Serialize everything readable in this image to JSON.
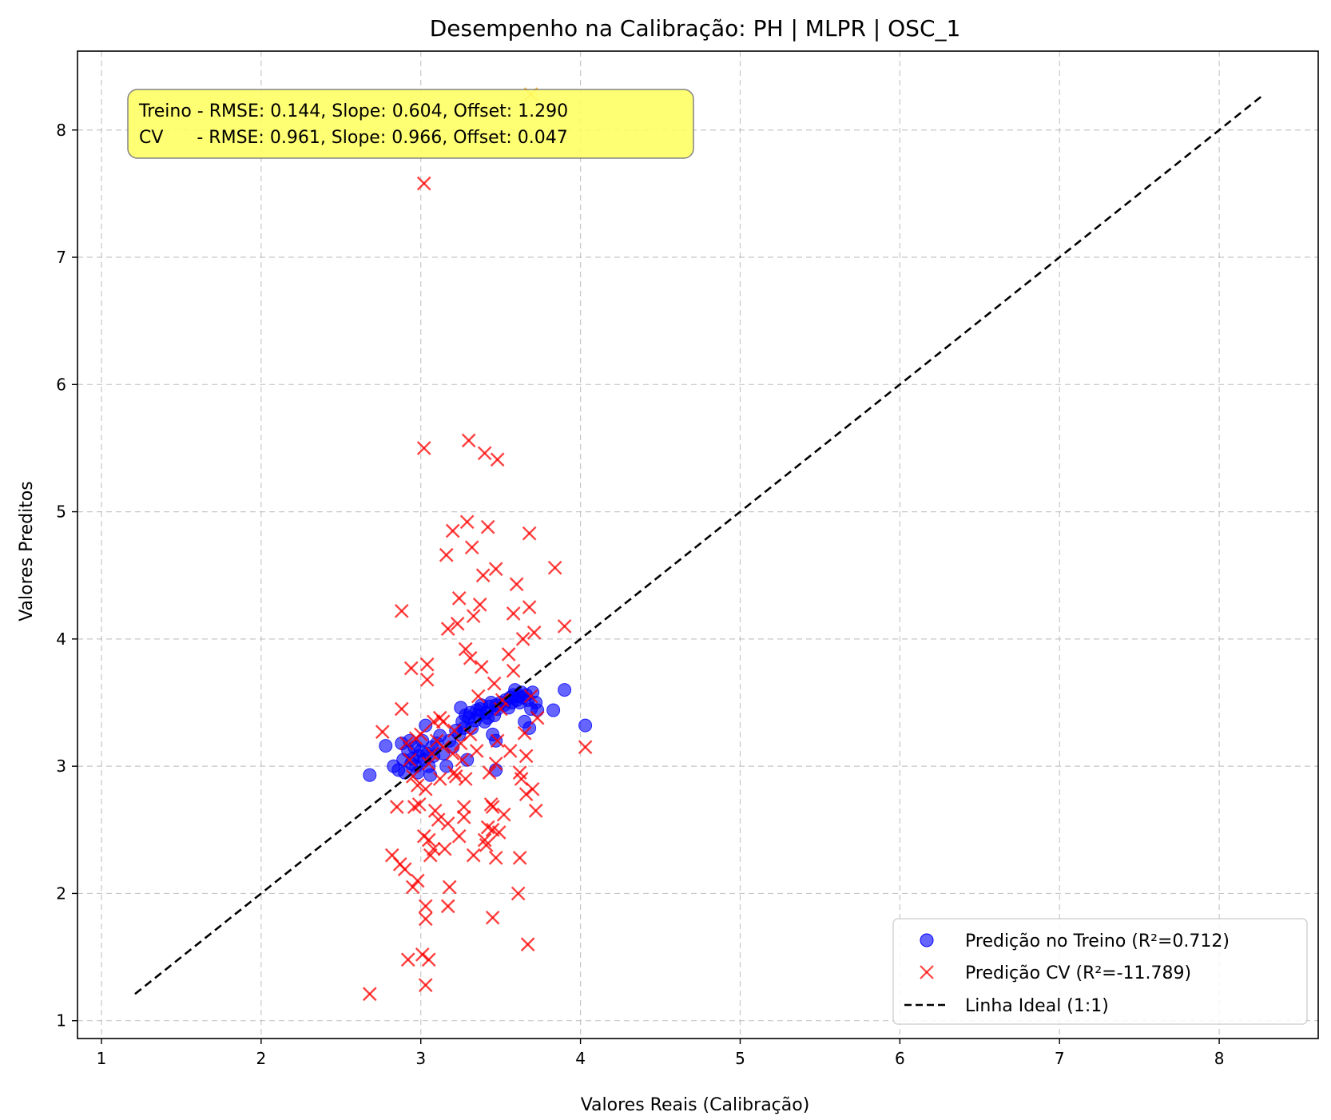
{
  "chart_data": {
    "type": "scatter",
    "title": "Desempenho na Calibração: PH | MLPR | OSC_1",
    "xlabel": "Valores Reais (Calibração)",
    "ylabel": "Valores Preditos",
    "xlim": [
      0.85,
      8.62
    ],
    "ylim": [
      0.86,
      8.62
    ],
    "xticks": [
      1,
      2,
      3,
      4,
      5,
      6,
      7,
      8
    ],
    "yticks": [
      1,
      2,
      3,
      4,
      5,
      6,
      7,
      8
    ],
    "grid": true,
    "legend_position": "lower-right",
    "annotation": {
      "line1": "Treino - RMSE: 0.144, Slope: 0.604, Offset: 1.290",
      "line2": "CV      - RMSE: 0.961, Slope: 0.966, Offset: 0.047",
      "background": "#ffff66"
    },
    "series": [
      {
        "name": "Predição no Treino (R²=0.712)",
        "marker": "circle",
        "color": "#0000ff",
        "points": [
          [
            2.68,
            2.93
          ],
          [
            2.78,
            3.16
          ],
          [
            2.83,
            3.0
          ],
          [
            2.86,
            2.97
          ],
          [
            2.88,
            3.18
          ],
          [
            2.89,
            3.05
          ],
          [
            2.9,
            2.95
          ],
          [
            2.92,
            3.12
          ],
          [
            2.93,
            3.2
          ],
          [
            2.94,
            3.02
          ],
          [
            2.95,
            3.06
          ],
          [
            2.96,
            3.15
          ],
          [
            2.97,
            3.0
          ],
          [
            2.98,
            2.95
          ],
          [
            2.99,
            3.08
          ],
          [
            3.0,
            3.12
          ],
          [
            3.01,
            3.2
          ],
          [
            3.02,
            3.05
          ],
          [
            3.03,
            3.32
          ],
          [
            3.04,
            3.1
          ],
          [
            3.05,
            3.0
          ],
          [
            3.06,
            2.93
          ],
          [
            3.07,
            3.15
          ],
          [
            3.08,
            3.08
          ],
          [
            3.1,
            3.18
          ],
          [
            3.12,
            3.24
          ],
          [
            3.14,
            3.1
          ],
          [
            3.16,
            3.0
          ],
          [
            3.18,
            3.2
          ],
          [
            3.2,
            3.15
          ],
          [
            3.22,
            3.28
          ],
          [
            3.24,
            3.25
          ],
          [
            3.25,
            3.46
          ],
          [
            3.26,
            3.35
          ],
          [
            3.27,
            3.3
          ],
          [
            3.28,
            3.4
          ],
          [
            3.29,
            3.05
          ],
          [
            3.3,
            3.38
          ],
          [
            3.31,
            3.42
          ],
          [
            3.32,
            3.3
          ],
          [
            3.34,
            3.36
          ],
          [
            3.35,
            3.44
          ],
          [
            3.36,
            3.4
          ],
          [
            3.37,
            3.45
          ],
          [
            3.38,
            3.48
          ],
          [
            3.4,
            3.35
          ],
          [
            3.41,
            3.42
          ],
          [
            3.42,
            3.38
          ],
          [
            3.43,
            3.47
          ],
          [
            3.44,
            3.5
          ],
          [
            3.45,
            3.25
          ],
          [
            3.46,
            3.4
          ],
          [
            3.47,
            3.48
          ],
          [
            3.47,
            3.2
          ],
          [
            3.48,
            3.45
          ],
          [
            3.5,
            3.5
          ],
          [
            3.52,
            3.48
          ],
          [
            3.53,
            3.52
          ],
          [
            3.55,
            3.46
          ],
          [
            3.56,
            3.54
          ],
          [
            3.57,
            3.5
          ],
          [
            3.58,
            3.56
          ],
          [
            3.59,
            3.6
          ],
          [
            3.6,
            3.52
          ],
          [
            3.61,
            3.55
          ],
          [
            3.62,
            3.5
          ],
          [
            3.63,
            3.58
          ],
          [
            3.64,
            3.54
          ],
          [
            3.65,
            3.35
          ],
          [
            3.66,
            3.56
          ],
          [
            3.67,
            3.52
          ],
          [
            3.68,
            3.3
          ],
          [
            3.69,
            3.45
          ],
          [
            3.7,
            3.58
          ],
          [
            3.72,
            3.5
          ],
          [
            3.73,
            3.44
          ],
          [
            3.83,
            3.44
          ],
          [
            3.9,
            3.6
          ],
          [
            4.03,
            3.32
          ],
          [
            3.47,
            2.97
          ]
        ]
      },
      {
        "name": "Predição CV (R²=-11.789)",
        "marker": "x",
        "color": "#ff0000",
        "points": [
          [
            2.68,
            1.21
          ],
          [
            2.76,
            3.27
          ],
          [
            2.82,
            2.3
          ],
          [
            2.85,
            2.68
          ],
          [
            2.87,
            2.23
          ],
          [
            2.88,
            4.22
          ],
          [
            2.88,
            3.45
          ],
          [
            2.9,
            2.19
          ],
          [
            2.91,
            3.18
          ],
          [
            2.92,
            1.48
          ],
          [
            2.93,
            3.05
          ],
          [
            2.94,
            3.77
          ],
          [
            2.95,
            2.05
          ],
          [
            2.96,
            2.68
          ],
          [
            2.97,
            3.22
          ],
          [
            2.98,
            2.1
          ],
          [
            2.99,
            2.7
          ],
          [
            3.0,
            3.25
          ],
          [
            3.01,
            1.52
          ],
          [
            3.02,
            7.58
          ],
          [
            3.02,
            5.5
          ],
          [
            3.02,
            2.45
          ],
          [
            3.03,
            1.9
          ],
          [
            3.03,
            2.82
          ],
          [
            3.03,
            1.8
          ],
          [
            3.03,
            1.28
          ],
          [
            3.04,
            3.8
          ],
          [
            3.04,
            3.68
          ],
          [
            3.05,
            2.42
          ],
          [
            3.05,
            1.48
          ],
          [
            3.06,
            2.3
          ],
          [
            3.07,
            3.1
          ],
          [
            3.08,
            2.35
          ],
          [
            3.09,
            2.65
          ],
          [
            3.1,
            3.2
          ],
          [
            3.11,
            2.58
          ],
          [
            3.12,
            3.38
          ],
          [
            3.14,
            3.15
          ],
          [
            3.15,
            2.35
          ],
          [
            3.16,
            4.66
          ],
          [
            3.17,
            4.08
          ],
          [
            3.17,
            2.55
          ],
          [
            3.17,
            1.9
          ],
          [
            3.18,
            2.05
          ],
          [
            3.2,
            4.85
          ],
          [
            3.21,
            3.28
          ],
          [
            3.22,
            2.92
          ],
          [
            3.23,
            4.12
          ],
          [
            3.24,
            4.32
          ],
          [
            3.24,
            2.45
          ],
          [
            3.25,
            3.18
          ],
          [
            3.26,
            3.05
          ],
          [
            3.27,
            2.6
          ],
          [
            3.28,
            2.9
          ],
          [
            3.28,
            3.92
          ],
          [
            3.29,
            4.92
          ],
          [
            3.3,
            5.56
          ],
          [
            3.31,
            3.85
          ],
          [
            3.32,
            4.72
          ],
          [
            3.33,
            4.18
          ],
          [
            3.35,
            3.12
          ],
          [
            3.37,
            4.27
          ],
          [
            3.38,
            3.78
          ],
          [
            3.39,
            4.5
          ],
          [
            3.4,
            5.46
          ],
          [
            3.41,
            2.38
          ],
          [
            3.42,
            4.88
          ],
          [
            3.43,
            2.95
          ],
          [
            3.44,
            2.7
          ],
          [
            3.45,
            2.5
          ],
          [
            3.45,
            1.81
          ],
          [
            3.46,
            3.65
          ],
          [
            3.47,
            4.55
          ],
          [
            3.47,
            3.02
          ],
          [
            3.47,
            2.28
          ],
          [
            3.48,
            5.41
          ],
          [
            3.49,
            2.48
          ],
          [
            3.5,
            3.45
          ],
          [
            3.51,
            3.52
          ],
          [
            3.55,
            3.88
          ],
          [
            3.56,
            3.12
          ],
          [
            3.58,
            4.2
          ],
          [
            3.6,
            4.43
          ],
          [
            3.61,
            2.0
          ],
          [
            3.62,
            2.28
          ],
          [
            3.63,
            2.9
          ],
          [
            3.64,
            4.0
          ],
          [
            3.65,
            3.26
          ],
          [
            3.66,
            3.08
          ],
          [
            3.67,
            1.6
          ],
          [
            3.68,
            4.83
          ],
          [
            3.68,
            4.25
          ],
          [
            3.69,
            3.55
          ],
          [
            3.7,
            2.82
          ],
          [
            3.71,
            4.05
          ],
          [
            3.72,
            2.65
          ],
          [
            3.73,
            3.38
          ],
          [
            3.84,
            4.56
          ],
          [
            3.9,
            4.1
          ],
          [
            4.03,
            3.15
          ],
          [
            3.42,
            2.52
          ],
          [
            3.45,
            2.68
          ],
          [
            3.33,
            2.3
          ],
          [
            3.21,
            2.95
          ],
          [
            3.12,
            2.9
          ],
          [
            3.08,
            3.35
          ],
          [
            2.98,
            2.85
          ],
          [
            3.36,
            3.55
          ],
          [
            3.52,
            2.62
          ],
          [
            3.58,
            3.75
          ],
          [
            3.62,
            2.95
          ],
          [
            3.66,
            2.78
          ],
          [
            3.2,
            3.1
          ],
          [
            3.27,
            2.68
          ],
          [
            3.4,
            2.42
          ],
          [
            3.48,
            3.2
          ],
          [
            3.05,
            3.02
          ],
          [
            2.95,
            2.92
          ],
          [
            3.14,
            3.35
          ],
          [
            3.31,
            3.25
          ]
        ]
      },
      {
        "name": "Linha Ideal (1:1)",
        "marker": "dashed-line",
        "color": "#000000",
        "points": [
          [
            1.21,
            1.21
          ],
          [
            8.28,
            8.28
          ]
        ]
      }
    ],
    "extra_points": [
      {
        "x": 3.69,
        "y": 8.28,
        "marker": "x",
        "color": "#ffa500"
      }
    ]
  }
}
